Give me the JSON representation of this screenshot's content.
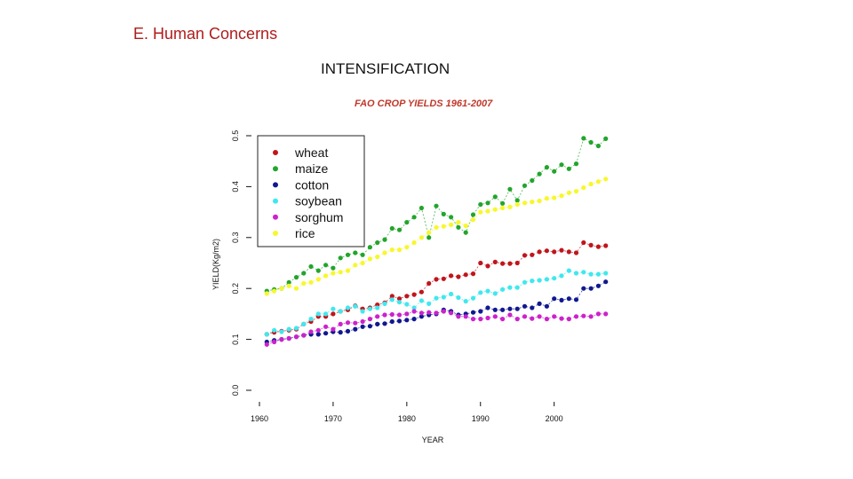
{
  "slide": {
    "heading": "E. Human Concerns",
    "subtitle": "INTENSIFICATION"
  },
  "colors": {
    "wheat": "#c0151c",
    "maize": "#22a52b",
    "cotton": "#101890",
    "soybean": "#40e8ee",
    "sorghum": "#cc22cc",
    "rice": "#f7f72e"
  },
  "chart_data": {
    "type": "scatter",
    "title": "FAO CROP YIELDS 1961-2007",
    "xlabel": "YEAR",
    "ylabel": "YIELD(Kg/m2)",
    "xlim": [
      1960,
      2008
    ],
    "ylim": [
      0.0,
      0.5
    ],
    "xticks": [
      "1960",
      "1970",
      "1980",
      "1990",
      "2000"
    ],
    "yticks": [
      "0.0",
      "0.1",
      "0.2",
      "0.3",
      "0.4",
      "0.5"
    ],
    "legend_position": "top-left",
    "x": [
      1961,
      1962,
      1963,
      1964,
      1965,
      1966,
      1967,
      1968,
      1969,
      1970,
      1971,
      1972,
      1973,
      1974,
      1975,
      1976,
      1977,
      1978,
      1979,
      1980,
      1981,
      1982,
      1983,
      1984,
      1985,
      1986,
      1987,
      1988,
      1989,
      1990,
      1991,
      1992,
      1993,
      1994,
      1995,
      1996,
      1997,
      1998,
      1999,
      2000,
      2001,
      2002,
      2003,
      2004,
      2005,
      2006,
      2007
    ],
    "series": [
      {
        "name": "wheat",
        "values": [
          0.11,
          0.114,
          0.116,
          0.118,
          0.12,
          0.13,
          0.135,
          0.145,
          0.145,
          0.15,
          0.155,
          0.158,
          0.166,
          0.16,
          0.162,
          0.168,
          0.172,
          0.185,
          0.18,
          0.185,
          0.188,
          0.193,
          0.21,
          0.218,
          0.219,
          0.225,
          0.223,
          0.227,
          0.229,
          0.25,
          0.244,
          0.252,
          0.249,
          0.249,
          0.25,
          0.265,
          0.266,
          0.272,
          0.274,
          0.272,
          0.275,
          0.272,
          0.27,
          0.29,
          0.285,
          0.282,
          0.284
        ]
      },
      {
        "name": "maize",
        "values": [
          0.195,
          0.198,
          0.2,
          0.212,
          0.222,
          0.23,
          0.243,
          0.235,
          0.246,
          0.24,
          0.26,
          0.266,
          0.27,
          0.266,
          0.281,
          0.29,
          0.296,
          0.318,
          0.315,
          0.33,
          0.34,
          0.358,
          0.3,
          0.362,
          0.346,
          0.34,
          0.32,
          0.31,
          0.345,
          0.365,
          0.368,
          0.38,
          0.367,
          0.395,
          0.373,
          0.402,
          0.412,
          0.425,
          0.438,
          0.43,
          0.443,
          0.435,
          0.445,
          0.495,
          0.487,
          0.48,
          0.494
        ]
      },
      {
        "name": "cotton",
        "values": [
          0.095,
          0.098,
          0.1,
          0.102,
          0.105,
          0.108,
          0.11,
          0.11,
          0.112,
          0.115,
          0.114,
          0.116,
          0.12,
          0.125,
          0.126,
          0.13,
          0.131,
          0.135,
          0.136,
          0.138,
          0.14,
          0.145,
          0.148,
          0.15,
          0.158,
          0.155,
          0.148,
          0.15,
          0.153,
          0.155,
          0.162,
          0.158,
          0.158,
          0.16,
          0.16,
          0.165,
          0.162,
          0.17,
          0.165,
          0.18,
          0.177,
          0.18,
          0.178,
          0.2,
          0.2,
          0.205,
          0.213
        ]
      },
      {
        "name": "soybean",
        "values": [
          0.11,
          0.118,
          0.115,
          0.12,
          0.122,
          0.13,
          0.14,
          0.15,
          0.15,
          0.16,
          0.155,
          0.162,
          0.165,
          0.155,
          0.16,
          0.162,
          0.17,
          0.178,
          0.173,
          0.169,
          0.162,
          0.176,
          0.17,
          0.181,
          0.183,
          0.189,
          0.182,
          0.175,
          0.181,
          0.192,
          0.195,
          0.19,
          0.198,
          0.202,
          0.202,
          0.212,
          0.215,
          0.216,
          0.218,
          0.22,
          0.225,
          0.235,
          0.23,
          0.232,
          0.228,
          0.228,
          0.23
        ]
      },
      {
        "name": "sorghum",
        "values": [
          0.09,
          0.095,
          0.1,
          0.102,
          0.105,
          0.108,
          0.115,
          0.118,
          0.125,
          0.12,
          0.13,
          0.133,
          0.132,
          0.135,
          0.14,
          0.145,
          0.148,
          0.149,
          0.148,
          0.15,
          0.155,
          0.152,
          0.153,
          0.152,
          0.155,
          0.152,
          0.145,
          0.145,
          0.14,
          0.14,
          0.142,
          0.145,
          0.14,
          0.148,
          0.14,
          0.145,
          0.141,
          0.145,
          0.14,
          0.145,
          0.141,
          0.14,
          0.145,
          0.146,
          0.145,
          0.15,
          0.15
        ]
      },
      {
        "name": "rice",
        "values": [
          0.19,
          0.195,
          0.2,
          0.205,
          0.2,
          0.21,
          0.212,
          0.218,
          0.225,
          0.23,
          0.232,
          0.235,
          0.246,
          0.25,
          0.258,
          0.262,
          0.27,
          0.276,
          0.276,
          0.281,
          0.29,
          0.3,
          0.31,
          0.32,
          0.322,
          0.325,
          0.33,
          0.323,
          0.335,
          0.35,
          0.352,
          0.355,
          0.358,
          0.36,
          0.365,
          0.368,
          0.37,
          0.372,
          0.377,
          0.378,
          0.382,
          0.388,
          0.391,
          0.398,
          0.405,
          0.41,
          0.415
        ]
      }
    ]
  }
}
